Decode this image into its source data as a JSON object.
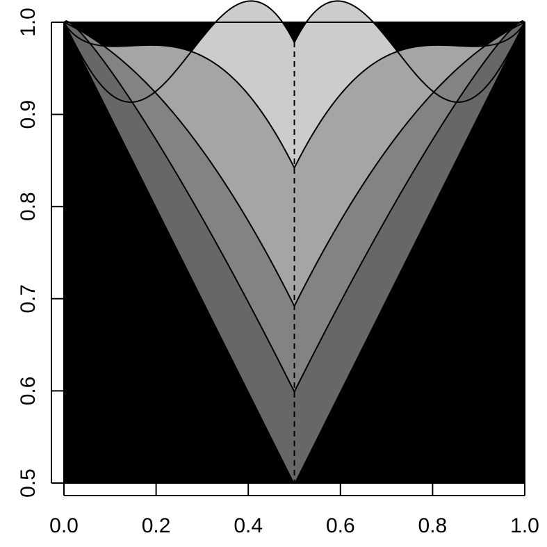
{
  "chart_data": {
    "type": "area",
    "title": "",
    "xlabel": "",
    "ylabel": "",
    "xlim": [
      0,
      1
    ],
    "ylim": [
      0.5,
      1.0
    ],
    "grid": false,
    "legend": "none",
    "x_ticks": [
      "0.0",
      "0.2",
      "0.4",
      "0.6",
      "0.8",
      "1.0"
    ],
    "y_ticks": [
      "0.5",
      "0.6",
      "0.7",
      "0.8",
      "0.9",
      "1.0"
    ],
    "x_tick_values": [
      0,
      0.2,
      0.4,
      0.6,
      0.8,
      1.0
    ],
    "y_tick_values": [
      0.5,
      0.6,
      0.7,
      0.8,
      0.9,
      1.0
    ],
    "background_region_color": "#000000",
    "lower_bound": {
      "x": [
        0,
        0.5,
        1
      ],
      "y": [
        1.0,
        0.5,
        1.0
      ]
    },
    "curves": [
      {
        "min_at_half": 0.978,
        "flatness": 3.0,
        "fill": "#cccccc"
      },
      {
        "min_at_half": 0.842,
        "flatness": 1.5,
        "fill": "#a5a5a5"
      },
      {
        "min_at_half": 0.692,
        "flatness": 1.0,
        "fill": "#838383"
      },
      {
        "min_at_half": 0.599,
        "flatness": 0.7,
        "fill": "#676767"
      }
    ],
    "vertical_reference": {
      "x": 0.5,
      "style": "dashed"
    }
  }
}
